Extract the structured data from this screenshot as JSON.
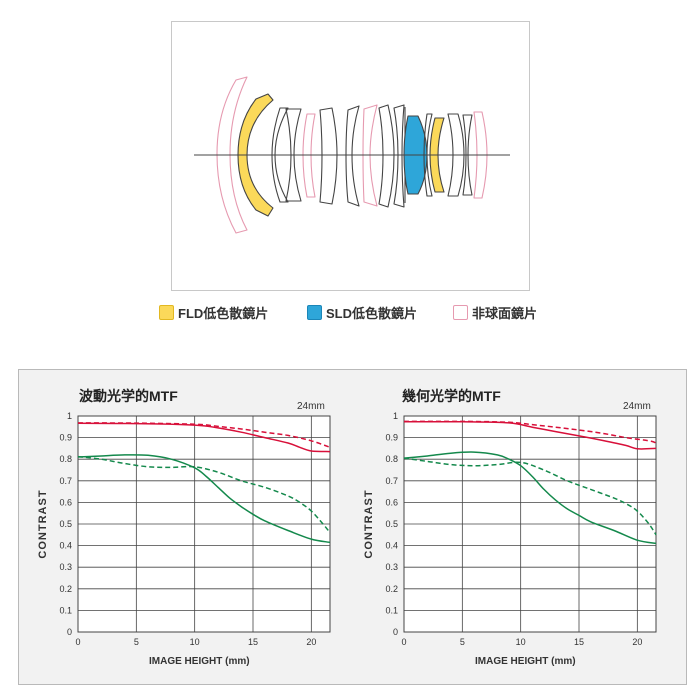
{
  "legend": {
    "items": [
      {
        "label": "FLD低色散鏡片",
        "fill": "#fbd95a",
        "stroke": "#e2b822"
      },
      {
        "label": "SLD低色散鏡片",
        "fill": "#2ea6d9",
        "stroke": "#1b86b8"
      },
      {
        "label": "非球面鏡片",
        "fill": "#ffffff",
        "stroke": "#e69ab0"
      }
    ]
  },
  "colors": {
    "lens_outline": "#444444",
    "aspherical": "#e69ab0",
    "fld": "#fbd95a",
    "sld": "#2ea6d9",
    "sagittal_red": "#d8103a",
    "meridional_green": "#14894c",
    "grid": "#444444"
  },
  "chart_data": [
    {
      "type": "line",
      "title": "波動光学的MTF",
      "focal_label": "24mm",
      "xlabel": "IMAGE HEIGHT (mm)",
      "ylabel": "CONTRAST",
      "xlim": [
        0,
        21.6
      ],
      "ylim": [
        0,
        1
      ],
      "xticks": [
        0,
        5,
        10,
        15,
        20
      ],
      "yticks": [
        0,
        0.1,
        0.2,
        0.3,
        0.4,
        0.5,
        0.6,
        0.7,
        0.8,
        0.9,
        1
      ],
      "ytick_labels": [
        "0",
        "0.1",
        "0.2",
        "0.3",
        "0.4",
        "0.5",
        "0.6",
        "0.7",
        "0.8",
        "0.9",
        "1"
      ],
      "grid": true,
      "series": [
        {
          "color": "red",
          "dash": "solid",
          "x": [
            0,
            5,
            10,
            12,
            14,
            16,
            18,
            19,
            20,
            21.6
          ],
          "y": [
            0.966,
            0.965,
            0.958,
            0.945,
            0.925,
            0.9,
            0.875,
            0.855,
            0.838,
            0.835
          ]
        },
        {
          "color": "red",
          "dash": "dashed",
          "x": [
            0,
            5,
            10,
            12,
            14,
            16,
            18,
            20,
            21.6
          ],
          "y": [
            0.968,
            0.967,
            0.962,
            0.952,
            0.94,
            0.925,
            0.91,
            0.885,
            0.855
          ]
        },
        {
          "color": "green",
          "dash": "solid",
          "x": [
            0,
            2,
            4,
            6,
            8,
            10,
            11,
            12,
            13,
            14,
            15,
            16,
            18,
            20,
            21.6
          ],
          "y": [
            0.81,
            0.815,
            0.82,
            0.818,
            0.8,
            0.76,
            0.72,
            0.67,
            0.62,
            0.58,
            0.545,
            0.515,
            0.47,
            0.43,
            0.415
          ]
        },
        {
          "color": "green",
          "dash": "dashed",
          "x": [
            0,
            2,
            4,
            6,
            8,
            10,
            12,
            14,
            16,
            18,
            19,
            20,
            21,
            21.6
          ],
          "y": [
            0.812,
            0.8,
            0.78,
            0.765,
            0.762,
            0.765,
            0.74,
            0.7,
            0.67,
            0.63,
            0.6,
            0.56,
            0.5,
            0.46
          ]
        }
      ]
    },
    {
      "type": "line",
      "title": "幾何光学的MTF",
      "focal_label": "24mm",
      "xlabel": "IMAGE HEIGHT (mm)",
      "ylabel": "CONTRAST",
      "xlim": [
        0,
        21.6
      ],
      "ylim": [
        0,
        1
      ],
      "xticks": [
        0,
        5,
        10,
        15,
        20
      ],
      "yticks": [
        0,
        0.1,
        0.2,
        0.3,
        0.4,
        0.5,
        0.6,
        0.7,
        0.8,
        0.9,
        1
      ],
      "ytick_labels": [
        "0",
        "0.1",
        "0.2",
        "0.3",
        "0.4",
        "0.5",
        "0.6",
        "0.7",
        "0.8",
        "0.9",
        "1"
      ],
      "grid": true,
      "series": [
        {
          "color": "red",
          "dash": "solid",
          "x": [
            0,
            5,
            9,
            11,
            13,
            15,
            17,
            19,
            20,
            21.6
          ],
          "y": [
            0.973,
            0.973,
            0.968,
            0.948,
            0.928,
            0.908,
            0.887,
            0.864,
            0.848,
            0.85
          ]
        },
        {
          "color": "red",
          "dash": "dashed",
          "x": [
            0,
            5,
            9,
            11,
            13,
            15,
            17,
            19,
            21,
            21.6
          ],
          "y": [
            0.975,
            0.975,
            0.971,
            0.96,
            0.948,
            0.935,
            0.92,
            0.9,
            0.885,
            0.875
          ]
        },
        {
          "color": "green",
          "dash": "solid",
          "x": [
            0,
            2,
            4,
            6,
            8,
            9,
            10,
            11,
            12,
            13,
            14,
            15,
            16,
            18,
            20,
            21.6
          ],
          "y": [
            0.805,
            0.815,
            0.828,
            0.833,
            0.82,
            0.8,
            0.77,
            0.72,
            0.66,
            0.61,
            0.57,
            0.54,
            0.51,
            0.47,
            0.425,
            0.41
          ]
        },
        {
          "color": "green",
          "dash": "dashed",
          "x": [
            0,
            2,
            4,
            6,
            8,
            10,
            12,
            14,
            16,
            18,
            19,
            20,
            21,
            21.6
          ],
          "y": [
            0.805,
            0.79,
            0.775,
            0.77,
            0.775,
            0.785,
            0.75,
            0.7,
            0.66,
            0.62,
            0.595,
            0.56,
            0.5,
            0.45
          ]
        }
      ]
    }
  ]
}
